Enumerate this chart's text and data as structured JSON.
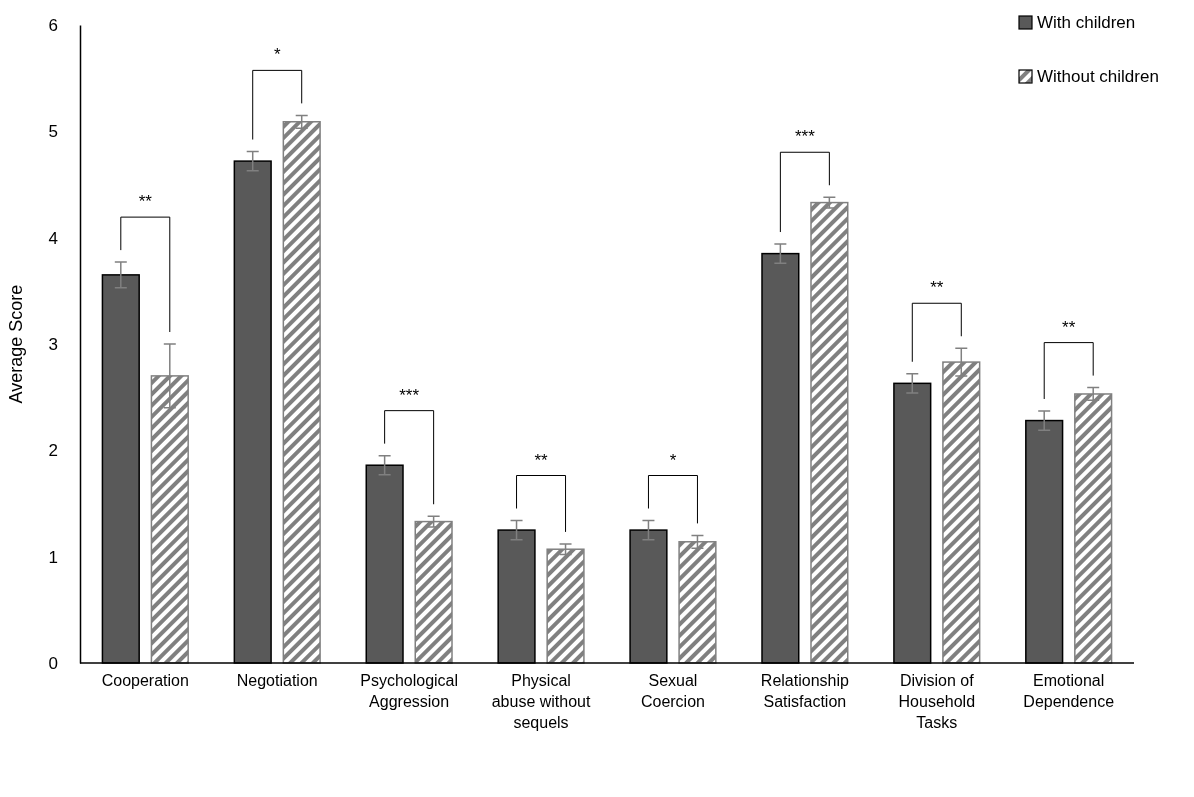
{
  "chart_data": {
    "type": "bar",
    "ylabel": "Average Score",
    "categories": [
      "Cooperation",
      "Negotiation",
      "Psychological Aggression",
      "Physical abuse without sequels",
      "Sexual Coercion",
      "Relationship Satisfaction",
      "Division of Household Tasks",
      "Emotional Dependence"
    ],
    "series": [
      {
        "name": "With children",
        "color": "#595959",
        "values": [
          3.65,
          4.72,
          1.86,
          1.25,
          1.25,
          3.85,
          2.63,
          2.28
        ],
        "errors": [
          0.12,
          0.09,
          0.09,
          0.09,
          0.09,
          0.09,
          0.09,
          0.09
        ]
      },
      {
        "name": "Without children",
        "color": "#808080",
        "values": [
          2.7,
          5.09,
          1.33,
          1.07,
          1.14,
          4.33,
          2.83,
          2.53
        ],
        "errors": [
          0.3,
          0.06,
          0.05,
          0.05,
          0.06,
          0.05,
          0.13,
          0.06
        ]
      }
    ],
    "annotations": [
      "**",
      "*",
      "***",
      "**",
      "*",
      "***",
      "**",
      "**"
    ],
    "ylim": [
      0,
      6
    ],
    "yticks": [
      0,
      1,
      2,
      3,
      4,
      5,
      6
    ],
    "grid": false,
    "legend": "top right"
  }
}
